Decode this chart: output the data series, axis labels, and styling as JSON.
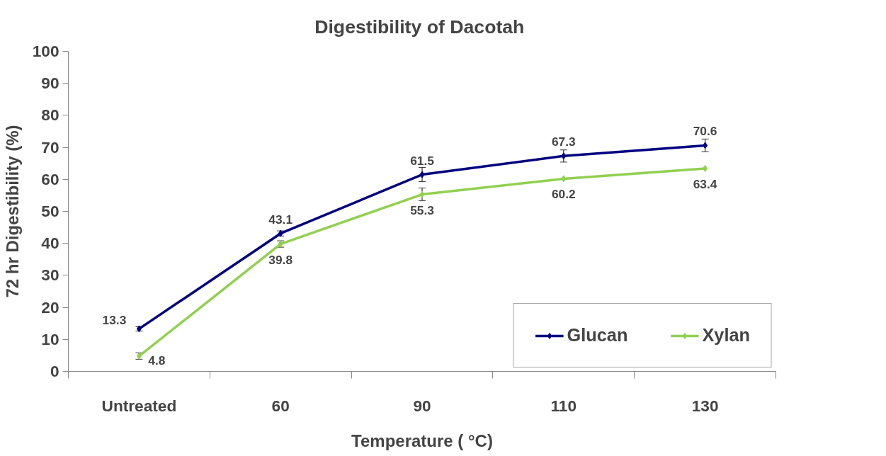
{
  "chart_data": {
    "type": "line",
    "title": "Digestibility of  Dacotah",
    "xlabel": "Temperature ( °C)",
    "ylabel": "72 hr Digestibility (%)",
    "categories": [
      "Untreated",
      "60",
      "90",
      "110",
      "130"
    ],
    "series": [
      {
        "name": "Glucan",
        "color": "#000080",
        "values": [
          13.3,
          43.1,
          61.5,
          67.3,
          70.6
        ],
        "errors": [
          0.7,
          0.8,
          2.2,
          1.9,
          2
        ]
      },
      {
        "name": "Xylan",
        "color": "#92d050",
        "values": [
          4.8,
          39.8,
          55.3,
          60.2,
          63.4
        ],
        "errors": [
          1,
          1,
          2,
          null,
          null
        ]
      }
    ],
    "ylim": [
      0,
      100
    ],
    "yticks": [
      0,
      10,
      20,
      30,
      40,
      50,
      60,
      70,
      80,
      90,
      100
    ],
    "grid": false,
    "legend": "bottom right",
    "marker": "diamond",
    "line_style": "solid",
    "data_labels": true
  }
}
